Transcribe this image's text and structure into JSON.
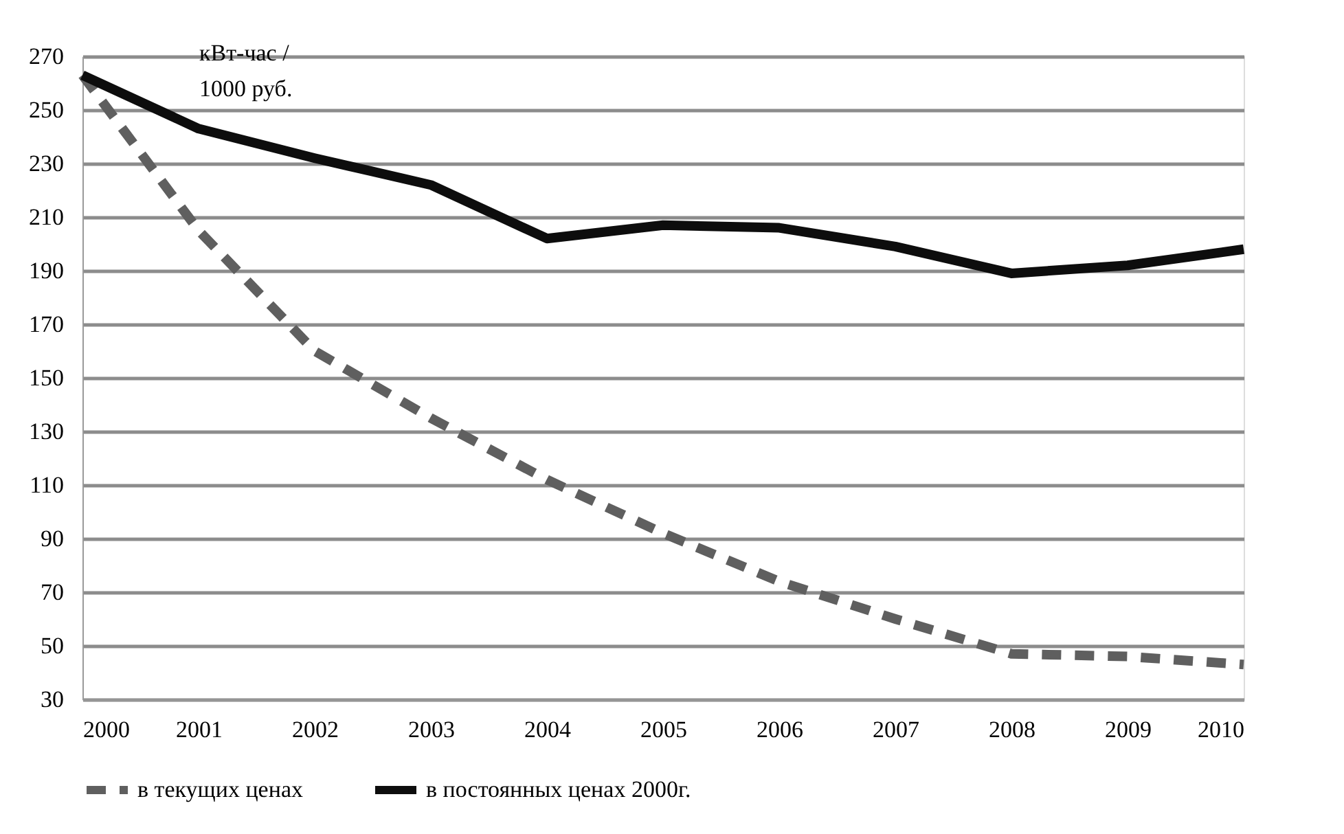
{
  "chart_data": {
    "type": "line",
    "x": [
      2000,
      2001,
      2002,
      2003,
      2004,
      2005,
      2006,
      2007,
      2008,
      2009,
      2010
    ],
    "series": [
      {
        "name": "в текущих ценах",
        "color": "#5f5f5f",
        "line_style": "dashed",
        "values": [
          263,
          205,
          160,
          135,
          112,
          92,
          74,
          60,
          47,
          46,
          43
        ]
      },
      {
        "name": "в постоянных ценах 2000г.",
        "color": "#0d0d0d",
        "line_style": "solid",
        "values": [
          263,
          243,
          232,
          222,
          202,
          207,
          206,
          199,
          189,
          192,
          198
        ]
      }
    ],
    "xlim": [
      2000,
      2010
    ],
    "xticks": [
      2000,
      2001,
      2002,
      2003,
      2004,
      2005,
      2006,
      2007,
      2008,
      2009,
      2010
    ],
    "ylim": [
      30,
      270
    ],
    "yticks": [
      30,
      50,
      70,
      90,
      110,
      130,
      150,
      170,
      190,
      210,
      230,
      250,
      270
    ],
    "annotations": [
      "кВт-час /\n1000 руб."
    ],
    "grid": "y",
    "legend": "bottom",
    "marker": "none"
  }
}
